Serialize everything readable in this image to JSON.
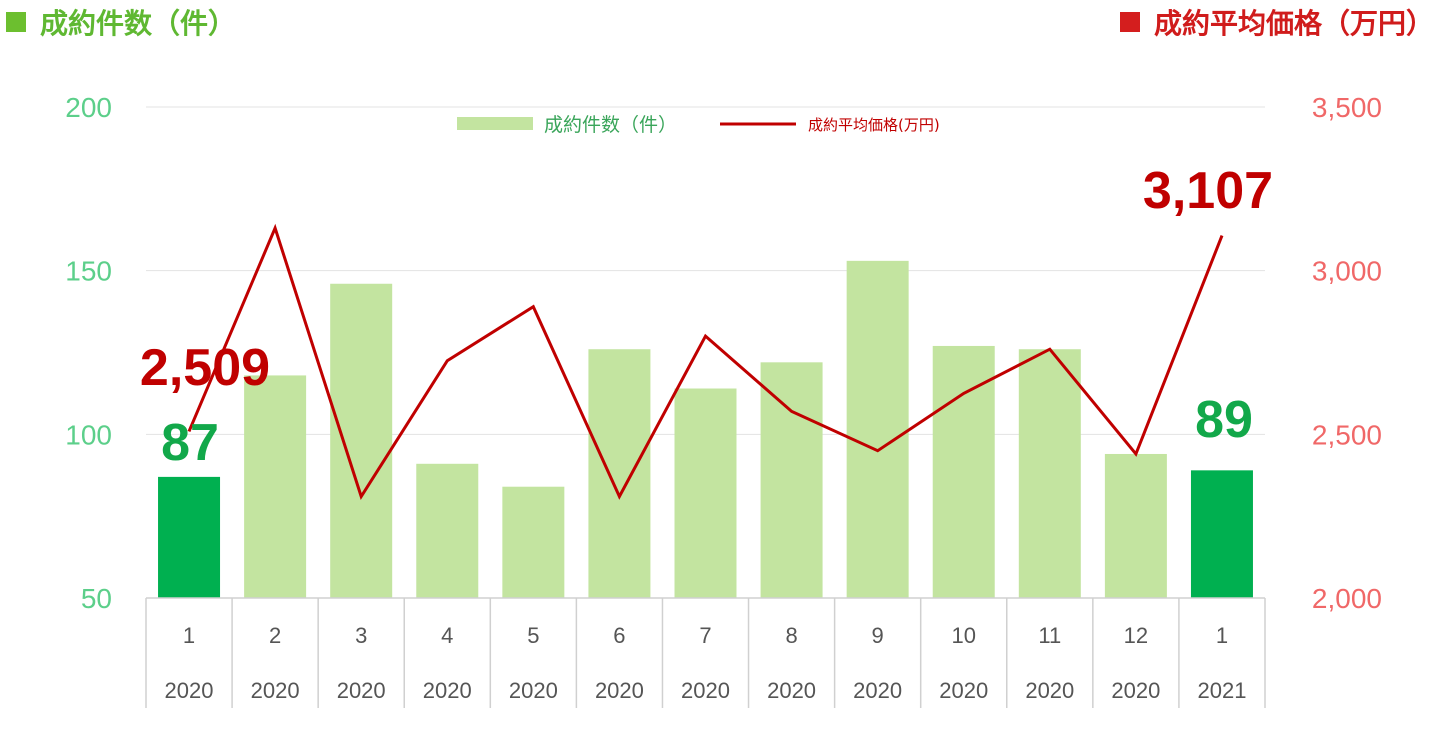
{
  "header": {
    "left_title": "成約件数（件）",
    "right_title": "成約平均価格（万円）"
  },
  "colors": {
    "bar_light": "#c3e4a0",
    "bar_highlight": "#00b050",
    "line": "#c00000",
    "left_axis": "#5ccf8a",
    "right_axis": "#f06868"
  },
  "chart_data": {
    "type": "bar",
    "title": "",
    "categories": [
      "1",
      "2",
      "3",
      "4",
      "5",
      "6",
      "7",
      "8",
      "9",
      "10",
      "11",
      "12",
      "1"
    ],
    "category_years": [
      "2020",
      "2020",
      "2020",
      "2020",
      "2020",
      "2020",
      "2020",
      "2020",
      "2020",
      "2020",
      "2020",
      "2020",
      "2021"
    ],
    "y_left": {
      "ticks": [
        "200",
        "150",
        "100",
        "50"
      ],
      "ylim": [
        50,
        200
      ]
    },
    "y_right": {
      "ticks": [
        "3,500",
        "3,000",
        "2,500",
        "2,000"
      ],
      "ylim": [
        2000,
        3500
      ]
    },
    "series": [
      {
        "name": "成約件数（件）",
        "type": "bar",
        "axis": "left",
        "values": [
          87,
          118,
          146,
          91,
          84,
          126,
          114,
          122,
          153,
          127,
          126,
          94,
          89
        ],
        "highlight_indices": [
          0,
          12
        ]
      },
      {
        "name": "成約平均価格(万円)",
        "type": "line",
        "axis": "right",
        "values": [
          2509,
          3130,
          2310,
          2725,
          2890,
          2310,
          2800,
          2570,
          2450,
          2625,
          2760,
          2440,
          3107
        ]
      }
    ],
    "annotations": {
      "bar_first": "87",
      "bar_last": "89",
      "line_first": "2,509",
      "line_last": "3,107"
    },
    "grid": true,
    "legend": "top-center"
  }
}
